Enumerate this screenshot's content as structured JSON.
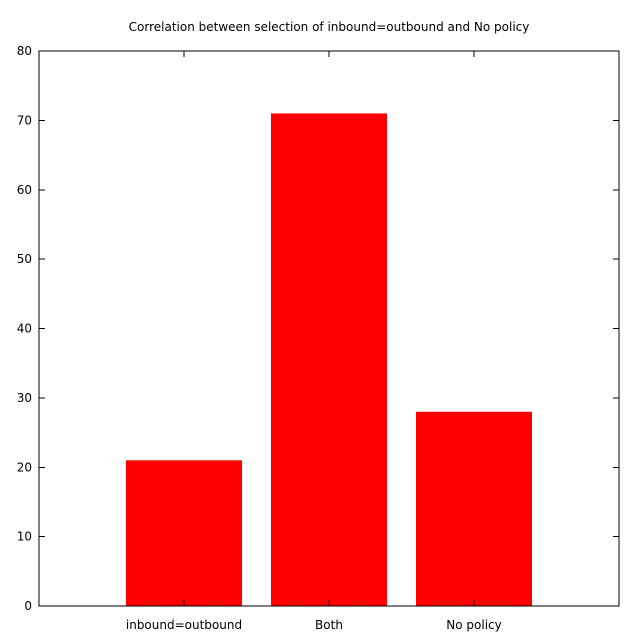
{
  "chart_data": {
    "type": "bar",
    "title": "Correlation between selection of inbound=outbound and No policy",
    "xlabel": "",
    "ylabel": "",
    "categories": [
      "inbound=outbound",
      "Both",
      "No policy"
    ],
    "values": [
      21,
      71,
      28
    ],
    "ylim": [
      0,
      80
    ],
    "yticks": [
      0,
      10,
      20,
      30,
      40,
      50,
      60,
      70,
      80
    ],
    "grid": false,
    "legend": "none",
    "bar_color": "#ff0000"
  }
}
